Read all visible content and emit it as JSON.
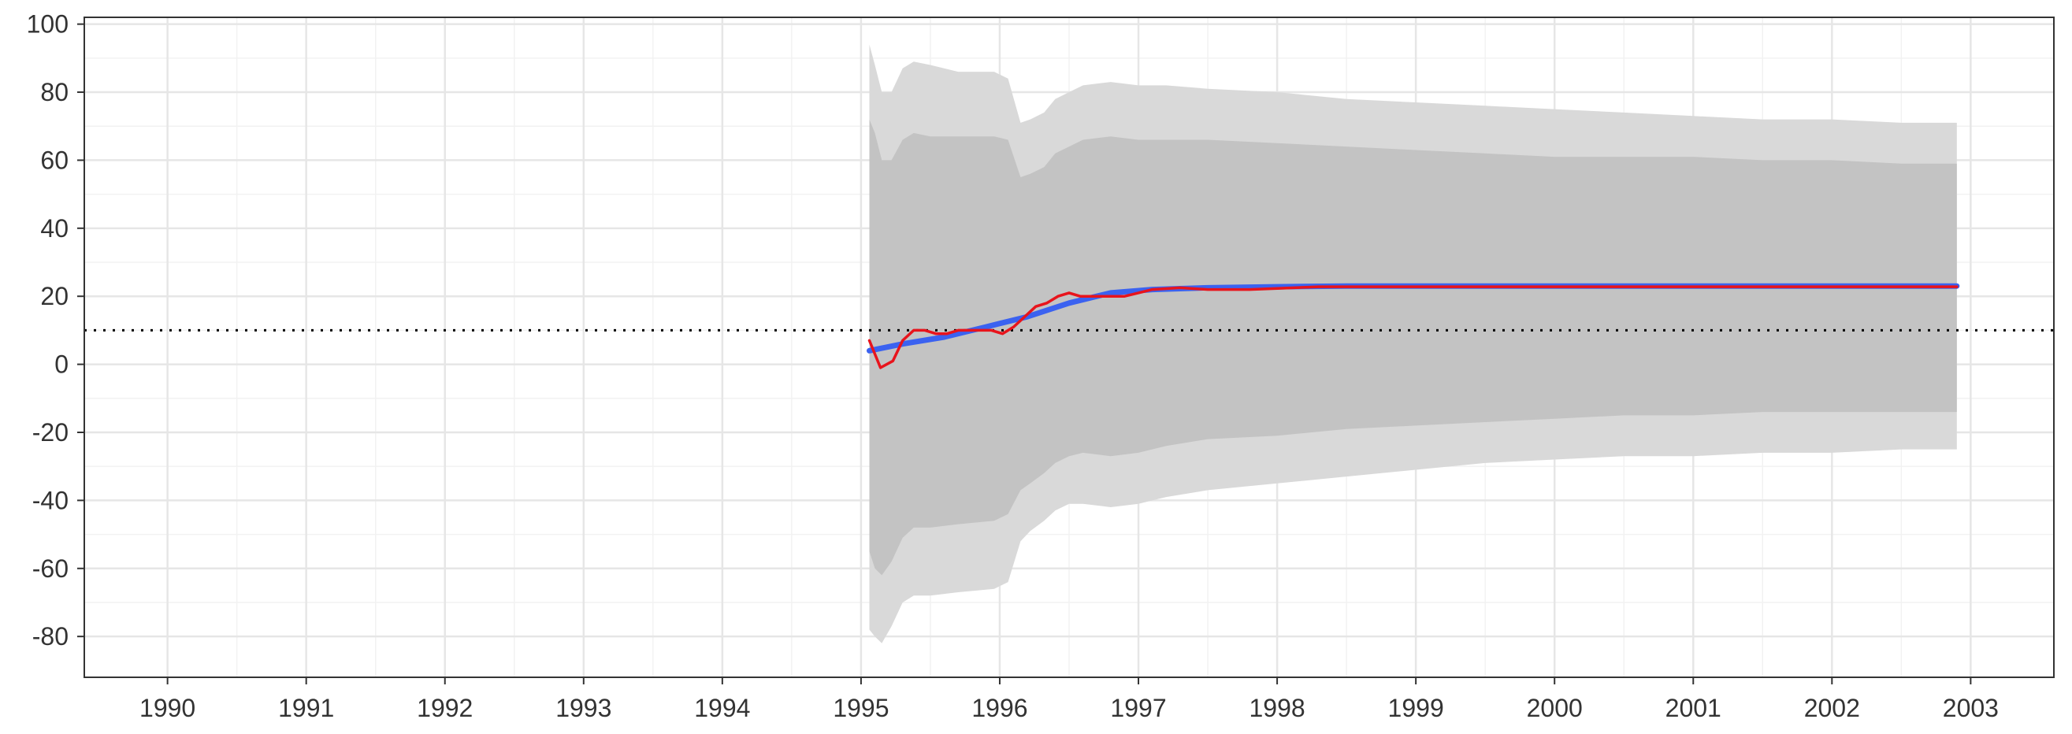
{
  "chart_data": {
    "type": "line",
    "title": "",
    "xlabel": "",
    "ylabel": "",
    "xlim": [
      1989.4,
      2003.6
    ],
    "ylim": [
      -92,
      102
    ],
    "x_ticks": [
      "1990",
      "1991",
      "1992",
      "1993",
      "1994",
      "1995",
      "1996",
      "1997",
      "1998",
      "1999",
      "2000",
      "2001",
      "2002",
      "2003"
    ],
    "y_ticks": [
      "100",
      "80",
      "60",
      "40",
      "20",
      "0",
      "-20",
      "-40",
      "-60",
      "-80"
    ],
    "grid": true,
    "legend": "none",
    "reference_line": {
      "y": 10,
      "style": "dotted",
      "color": "#000000"
    },
    "colors": {
      "outer_band": "#d9d9d9",
      "inner_band": "#c3c3c3",
      "mean_line": "#3b62f0",
      "actual_line": "#e8141c",
      "grid_major": "#e6e6e6",
      "grid_minor": "#f2f2f2",
      "panel_border": "#333333"
    },
    "bands": {
      "x": [
        1995.06,
        1995.1,
        1995.15,
        1995.22,
        1995.3,
        1995.38,
        1995.5,
        1995.7,
        1995.96,
        1996.06,
        1996.15,
        1996.22,
        1996.32,
        1996.4,
        1996.5,
        1996.6,
        1996.8,
        1997.0,
        1997.2,
        1997.5,
        1998.0,
        1998.5,
        1999.0,
        1999.5,
        2000.0,
        2000.5,
        2001.0,
        2001.5,
        2002.0,
        2002.5,
        2002.9
      ],
      "outer_upper": [
        94,
        88,
        80,
        80,
        87,
        89,
        88,
        86,
        86,
        84,
        71,
        72,
        74,
        78,
        80,
        82,
        83,
        82,
        82,
        81,
        80,
        78,
        77,
        76,
        75,
        74,
        73,
        72,
        72,
        71,
        71
      ],
      "inner_upper": [
        72,
        68,
        60,
        60,
        66,
        68,
        67,
        67,
        67,
        66,
        55,
        56,
        58,
        62,
        64,
        66,
        67,
        66,
        66,
        66,
        65,
        64,
        63,
        62,
        61,
        61,
        61,
        60,
        60,
        59,
        59
      ],
      "inner_lower": [
        -55,
        -60,
        -62,
        -58,
        -51,
        -48,
        -48,
        -47,
        -46,
        -44,
        -37,
        -35,
        -32,
        -29,
        -27,
        -26,
        -27,
        -26,
        -24,
        -22,
        -21,
        -19,
        -18,
        -17,
        -16,
        -15,
        -15,
        -14,
        -14,
        -14,
        -14
      ],
      "outer_lower": [
        -78,
        -80,
        -82,
        -77,
        -70,
        -68,
        -68,
        -67,
        -66,
        -64,
        -52,
        -49,
        -46,
        -43,
        -41,
        -41,
        -42,
        -41,
        -39,
        -37,
        -35,
        -33,
        -31,
        -29,
        -28,
        -27,
        -27,
        -26,
        -26,
        -25,
        -25
      ]
    },
    "series": [
      {
        "x": [
          1995.06,
          1995.3,
          1995.6,
          1995.9,
          1996.2,
          1996.5,
          1996.8,
          1997.1,
          1997.5,
          1998.0,
          1998.5,
          1999.0,
          2000.0,
          2001.0,
          2002.0,
          2002.9
        ],
        "values": [
          4,
          6,
          8,
          11,
          14,
          18,
          21,
          22,
          22.5,
          22.8,
          23,
          23,
          23,
          23,
          23,
          23
        ]
      },
      {
        "x": [
          1995.06,
          1995.14,
          1995.23,
          1995.3,
          1995.38,
          1995.46,
          1995.54,
          1995.62,
          1995.7,
          1995.78,
          1995.86,
          1995.94,
          1996.02,
          1996.1,
          1996.18,
          1996.26,
          1996.34,
          1996.42,
          1996.5,
          1996.58,
          1996.66,
          1996.74,
          1996.82,
          1996.9,
          1997.0,
          1997.1,
          1997.3,
          1997.5,
          1997.8,
          1998.0,
          1998.3,
          1999.0,
          2000.0,
          2001.0,
          2002.0,
          2002.9
        ],
        "values": [
          7,
          -1,
          1,
          7,
          10,
          10,
          9,
          9,
          10,
          10,
          10,
          10,
          9,
          11,
          14,
          17,
          18,
          20,
          21,
          20,
          20,
          20,
          20,
          20,
          21,
          22,
          22.5,
          22,
          22,
          22.3,
          22.8,
          22.8,
          22.8,
          22.8,
          22.8,
          22.8
        ]
      }
    ]
  }
}
